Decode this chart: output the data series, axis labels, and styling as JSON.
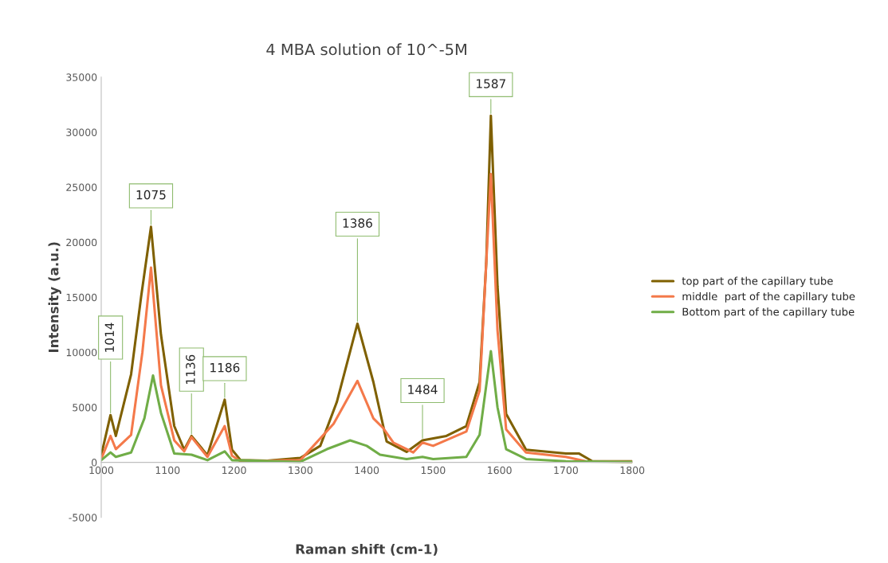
{
  "chart_data": {
    "type": "line",
    "title": "4 MBA solution of 10^-5M",
    "xlabel": "Raman shift (cm-1)",
    "ylabel": "Intensity (a.u.)",
    "xlim": [
      1000,
      1800
    ],
    "xticks": [
      1000,
      1100,
      1200,
      1300,
      1400,
      1500,
      1600,
      1700,
      1800
    ],
    "ylim": [
      -5000,
      35000
    ],
    "yticks": [
      -5000,
      0,
      5000,
      10000,
      15000,
      20000,
      25000,
      30000,
      35000
    ],
    "grid": false,
    "legend": "right",
    "marker": "none",
    "line_style": "solid",
    "series": [
      {
        "name": "top part of the capillary tube",
        "color": "#7f6000",
        "x": [
          1000,
          1014,
          1022,
          1045,
          1060,
          1075,
          1090,
          1110,
          1125,
          1136,
          1160,
          1186,
          1197,
          1210,
          1250,
          1300,
          1330,
          1355,
          1386,
          1410,
          1430,
          1460,
          1484,
          1520,
          1550,
          1570,
          1580,
          1587,
          1597,
          1610,
          1640,
          1700,
          1720,
          1740,
          1800
        ],
        "values": [
          650,
          4300,
          2400,
          8000,
          15000,
          21400,
          11600,
          3300,
          1150,
          2400,
          650,
          5700,
          1150,
          200,
          150,
          400,
          1500,
          5500,
          12600,
          7300,
          1900,
          950,
          2000,
          2400,
          3300,
          7300,
          18100,
          31500,
          16000,
          4400,
          1150,
          800,
          800,
          100,
          100
        ]
      },
      {
        "name": "middle  part of the capillary tube",
        "color": "#f4794a",
        "x": [
          1000,
          1014,
          1022,
          1045,
          1062,
          1075,
          1090,
          1110,
          1125,
          1136,
          1160,
          1186,
          1197,
          1210,
          1300,
          1350,
          1386,
          1410,
          1425,
          1440,
          1470,
          1484,
          1500,
          1550,
          1570,
          1587,
          1597,
          1610,
          1640,
          1700,
          1730,
          1800
        ],
        "values": [
          300,
          2400,
          1200,
          2500,
          10000,
          17700,
          7000,
          2000,
          1000,
          2300,
          500,
          3300,
          600,
          100,
          200,
          3500,
          7400,
          4000,
          3100,
          1800,
          900,
          1800,
          1500,
          2800,
          6500,
          26200,
          12000,
          3000,
          900,
          500,
          100,
          50
        ]
      },
      {
        "name": "Bottom part of the capillary tube",
        "color": "#70ad47",
        "x": [
          1000,
          1014,
          1022,
          1045,
          1065,
          1078,
          1090,
          1110,
          1136,
          1160,
          1186,
          1197,
          1300,
          1340,
          1375,
          1400,
          1420,
          1460,
          1484,
          1500,
          1550,
          1570,
          1587,
          1597,
          1610,
          1640,
          1700,
          1800
        ],
        "values": [
          200,
          900,
          500,
          900,
          4000,
          7900,
          4500,
          800,
          700,
          200,
          1000,
          200,
          50,
          1200,
          2000,
          1500,
          700,
          300,
          500,
          300,
          500,
          2500,
          10100,
          5000,
          1200,
          300,
          100,
          50
        ]
      }
    ],
    "annotations": [
      {
        "text": "1014",
        "x": 1014,
        "y": 4300
      },
      {
        "text": "1075",
        "x": 1075,
        "y": 21400
      },
      {
        "text": "1136",
        "x": 1136,
        "y": 2400
      },
      {
        "text": "1186",
        "x": 1186,
        "y": 5700
      },
      {
        "text": "1386",
        "x": 1386,
        "y": 12600
      },
      {
        "text": "1484",
        "x": 1484,
        "y": 2000
      },
      {
        "text": "1587",
        "x": 1587,
        "y": 31500
      }
    ]
  }
}
